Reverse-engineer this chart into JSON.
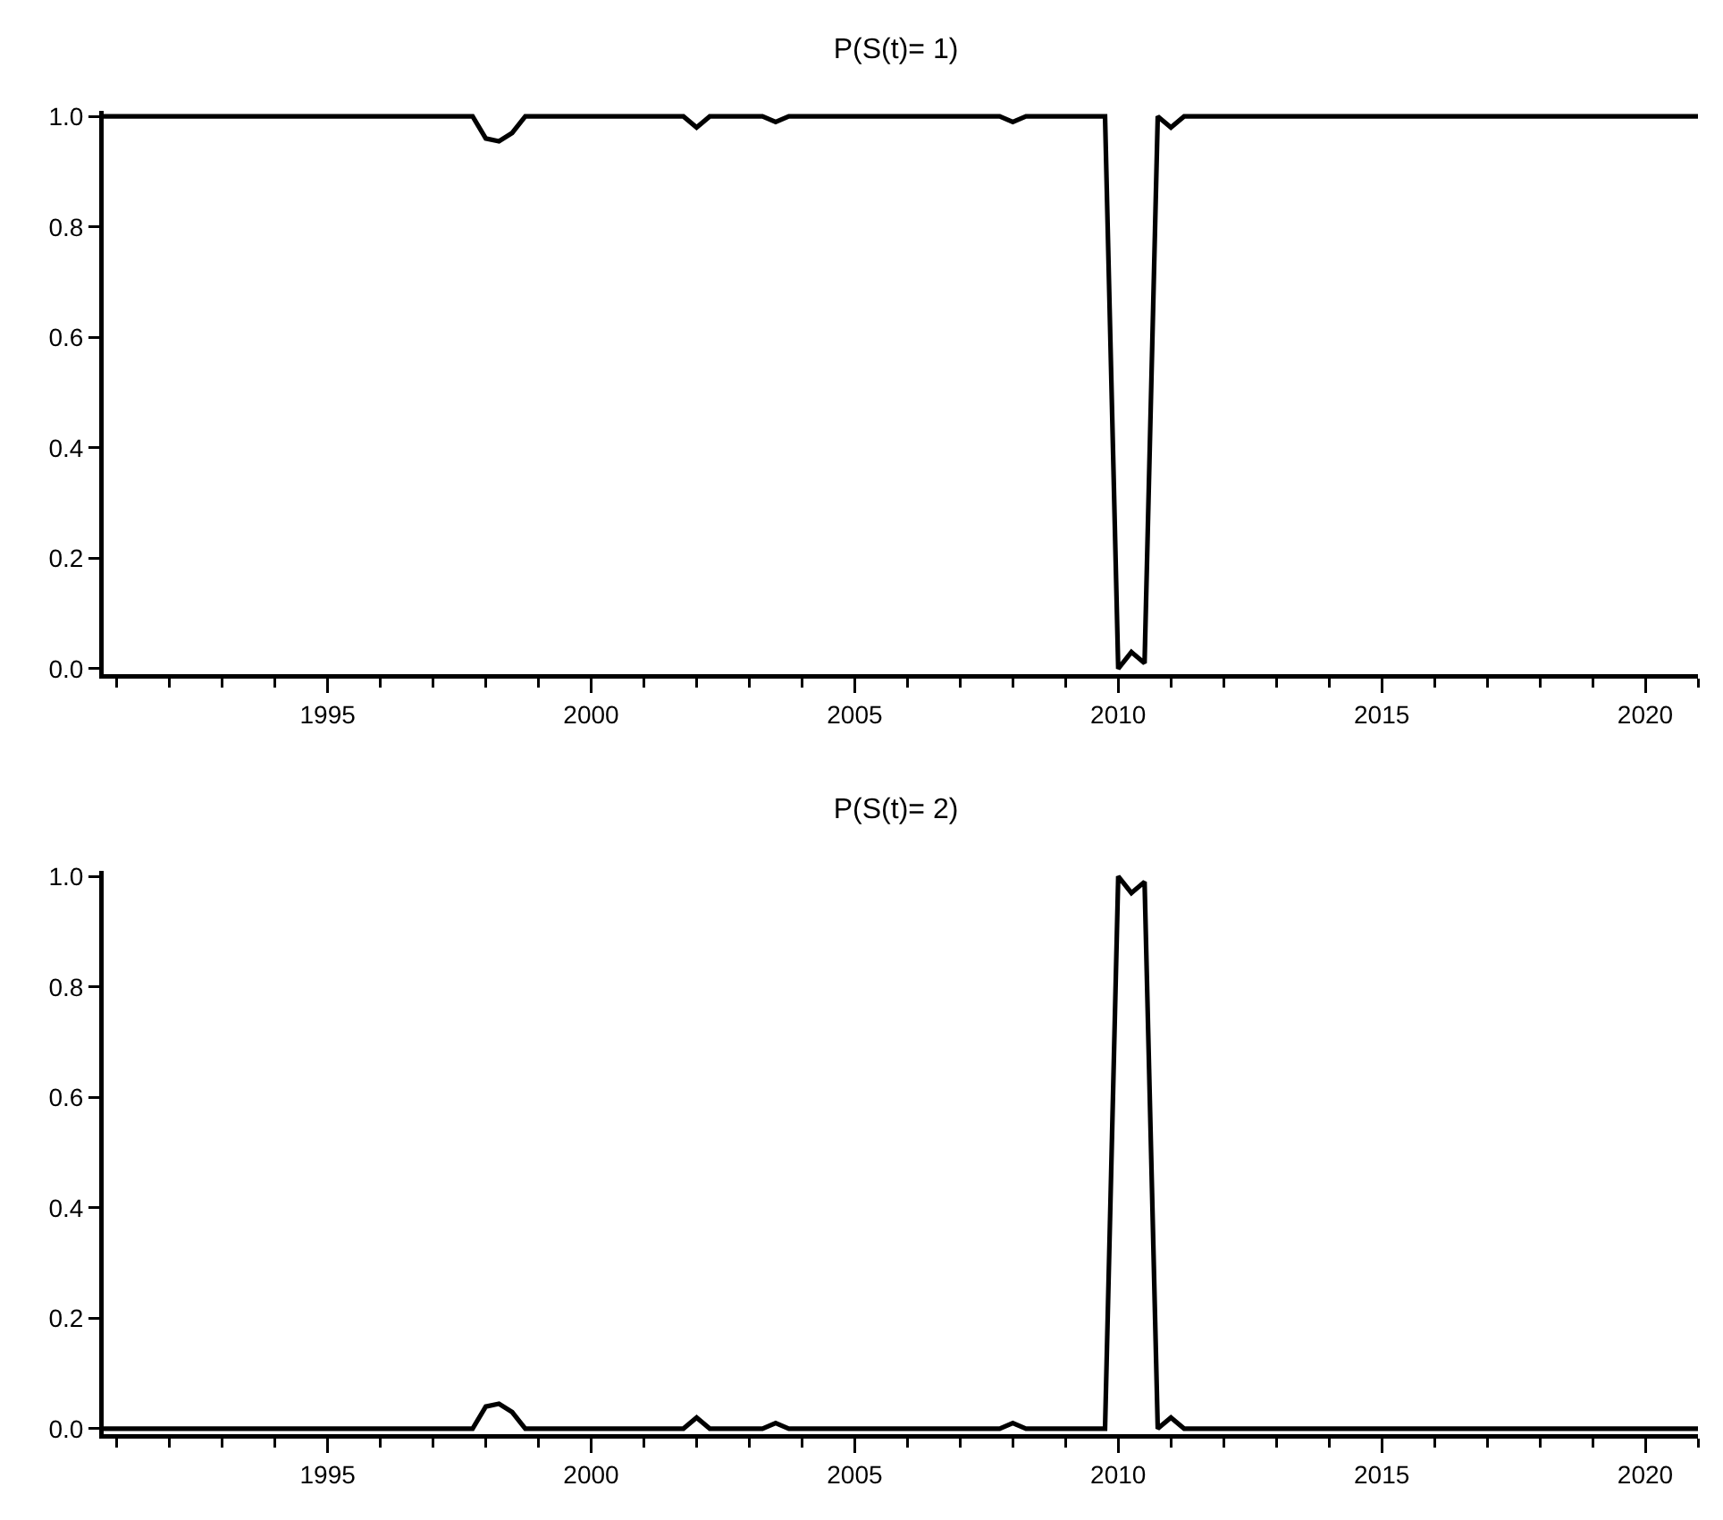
{
  "chart_data": [
    {
      "type": "line",
      "title": "P(S(t)= 1)",
      "xlim": [
        1990.75,
        2021
      ],
      "ylim": [
        -0.01,
        1.01
      ],
      "xticks": [
        {
          "value": 1991,
          "label": null
        },
        {
          "value": 1992,
          "label": null
        },
        {
          "value": 1993,
          "label": null
        },
        {
          "value": 1994,
          "label": null
        },
        1995,
        {
          "value": 1996,
          "label": null
        },
        {
          "value": 1997,
          "label": null
        },
        {
          "value": 1998,
          "label": null
        },
        {
          "value": 1999,
          "label": null
        },
        2000,
        {
          "value": 2001,
          "label": null
        },
        {
          "value": 2002,
          "label": null
        },
        {
          "value": 2003,
          "label": null
        },
        {
          "value": 2004,
          "label": null
        },
        2005,
        {
          "value": 2006,
          "label": null
        },
        {
          "value": 2007,
          "label": null
        },
        {
          "value": 2008,
          "label": null
        },
        {
          "value": 2009,
          "label": null
        },
        2010,
        {
          "value": 2011,
          "label": null
        },
        {
          "value": 2012,
          "label": null
        },
        {
          "value": 2013,
          "label": null
        },
        {
          "value": 2014,
          "label": null
        },
        2015,
        {
          "value": 2016,
          "label": null
        },
        {
          "value": 2017,
          "label": null
        },
        {
          "value": 2018,
          "label": null
        },
        {
          "value": 2019,
          "label": null
        },
        2020,
        {
          "value": 2021,
          "label": null
        }
      ],
      "yticks": [
        {
          "value": 0,
          "label": "0.0"
        },
        {
          "value": 0.2,
          "label": "0.2"
        },
        {
          "value": 0.4,
          "label": "0.4"
        },
        {
          "value": 0.6,
          "label": "0.6"
        },
        {
          "value": 0.8,
          "label": "0.8"
        },
        {
          "value": 1,
          "label": "1.0"
        }
      ],
      "grid": false,
      "line_style": "solid",
      "series": [
        {
          "color": "#000000",
          "x": [
            1990.75,
            1997.75,
            1998,
            1998.25,
            1998.5,
            1998.75,
            2001.75,
            2002,
            2002.25,
            2003.25,
            2003.5,
            2003.75,
            2007.75,
            2008,
            2008.25,
            2009.75,
            2010,
            2010.25,
            2010.5,
            2010.75,
            2011,
            2011.25,
            2021
          ],
          "values": [
            1,
            1,
            0.96,
            0.955,
            0.97,
            1,
            1,
            0.98,
            1,
            1,
            0.99,
            1,
            1,
            0.99,
            1,
            1,
            0,
            0.03,
            0.01,
            1,
            0.98,
            1,
            1
          ]
        }
      ]
    },
    {
      "type": "line",
      "title": "P(S(t)= 2)",
      "xlim": [
        1990.75,
        2021
      ],
      "ylim": [
        -0.01,
        1.01
      ],
      "xticks": [
        {
          "value": 1991,
          "label": null
        },
        {
          "value": 1992,
          "label": null
        },
        {
          "value": 1993,
          "label": null
        },
        {
          "value": 1994,
          "label": null
        },
        1995,
        {
          "value": 1996,
          "label": null
        },
        {
          "value": 1997,
          "label": null
        },
        {
          "value": 1998,
          "label": null
        },
        {
          "value": 1999,
          "label": null
        },
        2000,
        {
          "value": 2001,
          "label": null
        },
        {
          "value": 2002,
          "label": null
        },
        {
          "value": 2003,
          "label": null
        },
        {
          "value": 2004,
          "label": null
        },
        2005,
        {
          "value": 2006,
          "label": null
        },
        {
          "value": 2007,
          "label": null
        },
        {
          "value": 2008,
          "label": null
        },
        {
          "value": 2009,
          "label": null
        },
        2010,
        {
          "value": 2011,
          "label": null
        },
        {
          "value": 2012,
          "label": null
        },
        {
          "value": 2013,
          "label": null
        },
        {
          "value": 2014,
          "label": null
        },
        2015,
        {
          "value": 2016,
          "label": null
        },
        {
          "value": 2017,
          "label": null
        },
        {
          "value": 2018,
          "label": null
        },
        {
          "value": 2019,
          "label": null
        },
        2020,
        {
          "value": 2021,
          "label": null
        }
      ],
      "yticks": [
        {
          "value": 0,
          "label": "0.0"
        },
        {
          "value": 0.2,
          "label": "0.2"
        },
        {
          "value": 0.4,
          "label": "0.4"
        },
        {
          "value": 0.6,
          "label": "0.6"
        },
        {
          "value": 0.8,
          "label": "0.8"
        },
        {
          "value": 1,
          "label": "1.0"
        }
      ],
      "grid": false,
      "line_style": "solid",
      "series": [
        {
          "color": "#000000",
          "x": [
            1990.75,
            1997.75,
            1998,
            1998.25,
            1998.5,
            1998.75,
            2001.75,
            2002,
            2002.25,
            2003.25,
            2003.5,
            2003.75,
            2007.75,
            2008,
            2008.25,
            2009.75,
            2010,
            2010.25,
            2010.5,
            2010.75,
            2011,
            2011.25,
            2021
          ],
          "values": [
            0,
            0,
            0.04,
            0.045,
            0.03,
            0,
            0,
            0.02,
            0,
            0,
            0.01,
            0,
            0,
            0.01,
            0,
            0,
            1,
            0.97,
            0.99,
            0,
            0.02,
            0,
            0
          ]
        }
      ]
    }
  ]
}
